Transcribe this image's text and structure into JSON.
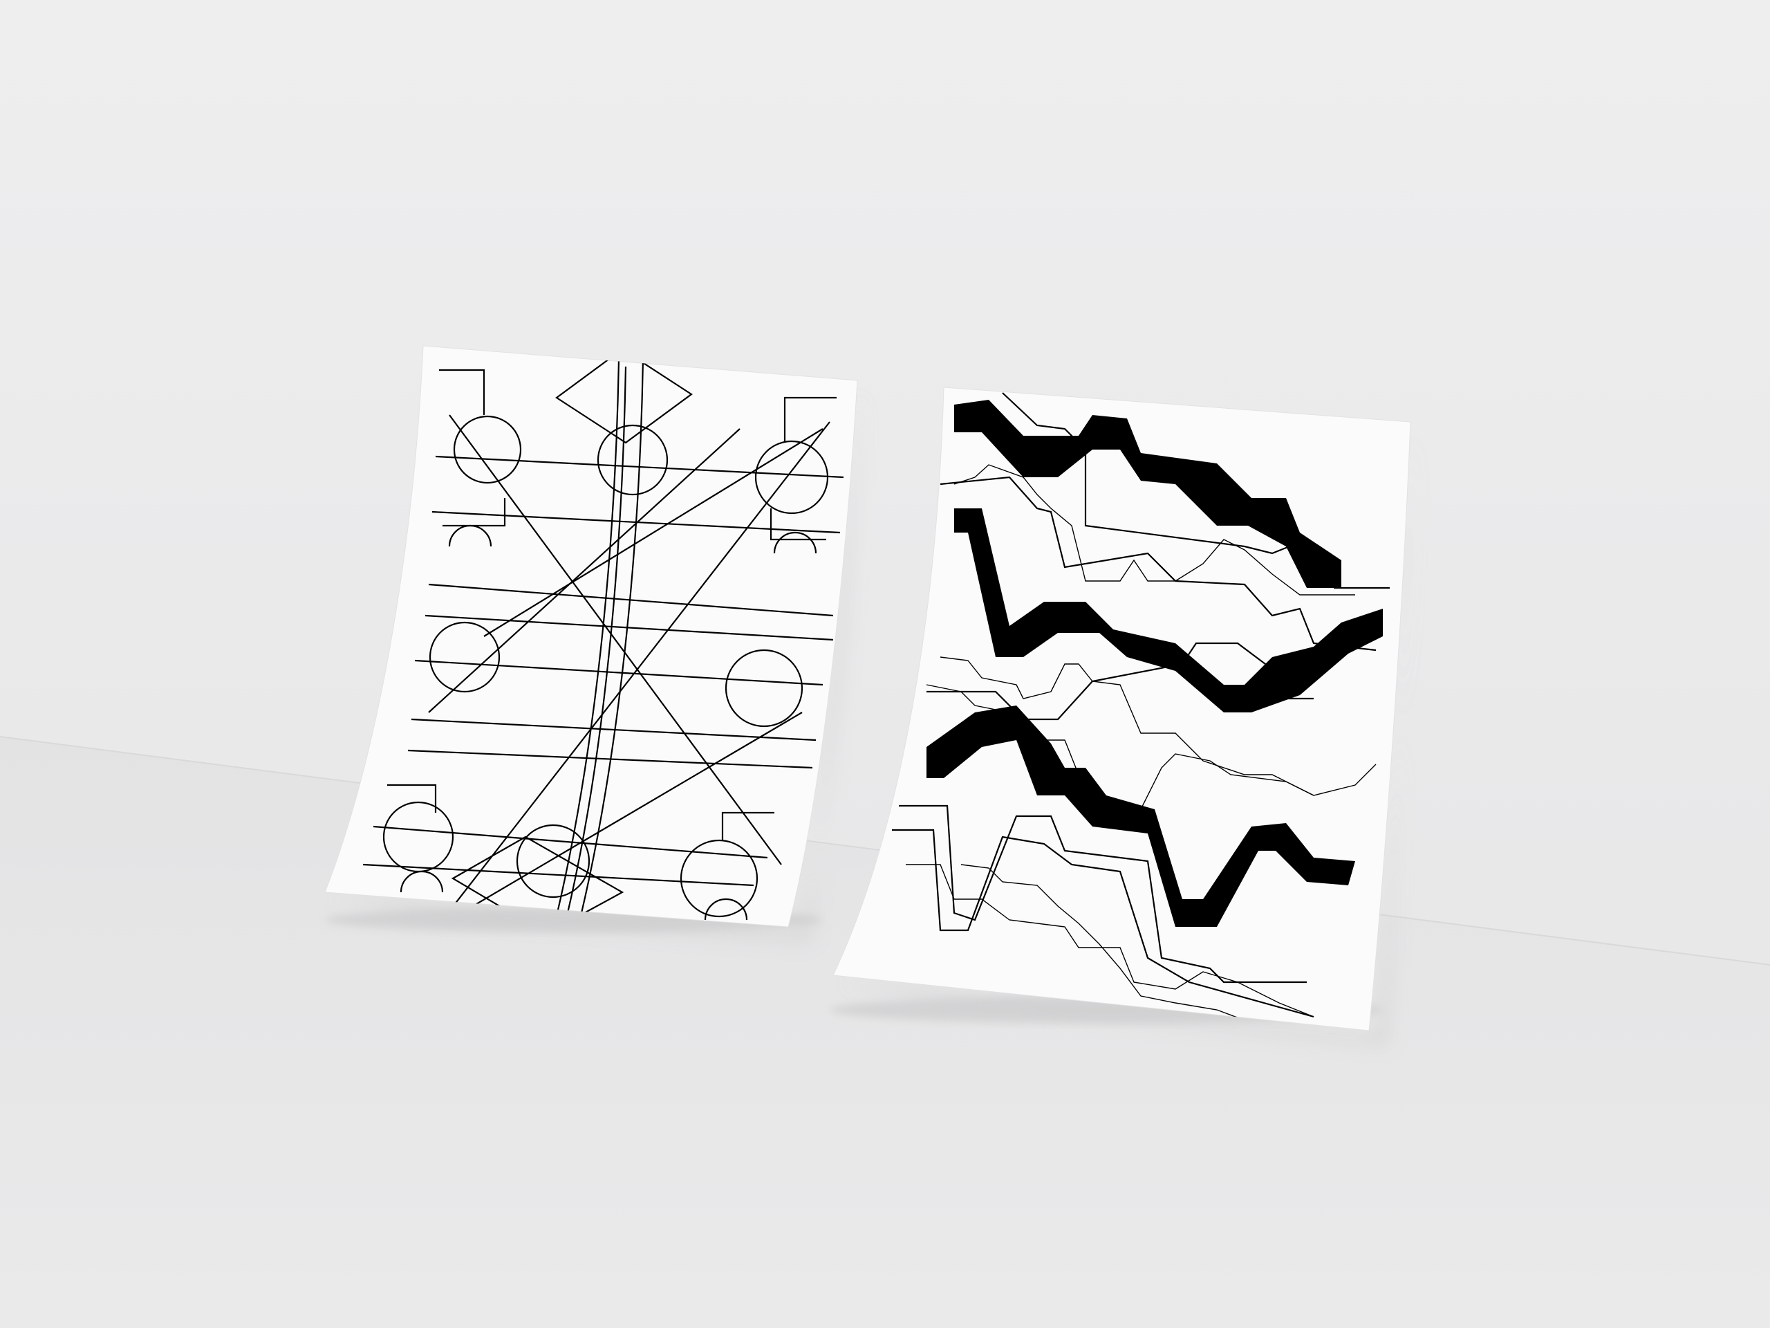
{
  "scene": {
    "description_visible_text": "",
    "wall_color": "#ebebec",
    "floor_color": "#e6e6e7",
    "paper_color": "#fbfbfb",
    "ink_color": "#000000"
  },
  "posters": [
    {
      "name": "poster-left",
      "style": "thin-line geometric field diagram"
    },
    {
      "name": "poster-right",
      "style": "bold stepped line graph"
    }
  ]
}
